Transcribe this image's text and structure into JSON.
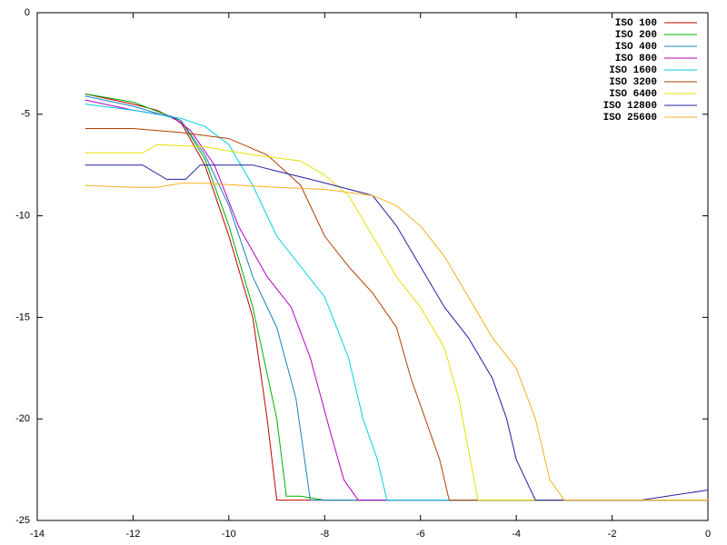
{
  "chart_data": {
    "type": "line",
    "xlim": [
      -14,
      0
    ],
    "ylim": [
      -25,
      0
    ],
    "xticks": [
      -14,
      -12,
      -10,
      -8,
      -6,
      -4,
      -2,
      0
    ],
    "yticks": [
      0,
      -5,
      -10,
      -15,
      -20,
      -25
    ],
    "grid": false,
    "legend": "top-right",
    "series": [
      {
        "name": "ISO 100",
        "color": "#c00000",
        "x": [
          -13,
          -12,
          -11.5,
          -11,
          -10.5,
          -10,
          -9.5,
          -9.2,
          -9.0,
          0
        ],
        "values": [
          -4.0,
          -4.5,
          -4.8,
          -5.4,
          -7.5,
          -11,
          -15,
          -20,
          -24,
          -24
        ]
      },
      {
        "name": "ISO 200",
        "color": "#00b000",
        "x": [
          -13,
          -12,
          -11,
          -10.5,
          -10,
          -9.5,
          -9.0,
          -8.8,
          -8.5,
          -8,
          0
        ],
        "values": [
          -4.0,
          -4.4,
          -5.3,
          -7.2,
          -10.5,
          -14.5,
          -20,
          -23.8,
          -23.8,
          -24,
          -24
        ]
      },
      {
        "name": "ISO 400",
        "color": "#1a80c0",
        "x": [
          -13,
          -12,
          -11,
          -10.5,
          -10,
          -9.5,
          -9,
          -8.6,
          -8.3,
          0
        ],
        "values": [
          -4.1,
          -4.6,
          -5.3,
          -7,
          -9.5,
          -13,
          -15.5,
          -19,
          -24,
          -24
        ]
      },
      {
        "name": "ISO 800",
        "color": "#b000c0",
        "x": [
          -13,
          -12,
          -11.2,
          -10.8,
          -10.3,
          -9.8,
          -9.2,
          -8.7,
          -8.3,
          -7.9,
          -7.6,
          -7.3,
          0
        ],
        "values": [
          -4.3,
          -4.8,
          -5.1,
          -5.8,
          -7.5,
          -10.5,
          -13,
          -14.5,
          -17,
          -20.5,
          -23,
          -24,
          -24
        ]
      },
      {
        "name": "ISO 1600",
        "color": "#00d0e0",
        "x": [
          -13,
          -12,
          -11,
          -10.5,
          -10,
          -9.5,
          -9,
          -8.5,
          -8,
          -7.5,
          -7.2,
          -6.9,
          -6.7,
          0
        ],
        "values": [
          -4.5,
          -4.8,
          -5.2,
          -5.6,
          -6.5,
          -8.5,
          -11,
          -12.5,
          -14,
          -17,
          -20,
          -22,
          -24,
          -24
        ]
      },
      {
        "name": "ISO 3200",
        "color": "#b04000",
        "x": [
          -13,
          -12,
          -11,
          -10,
          -9.2,
          -8.5,
          -8,
          -7.5,
          -7,
          -6.5,
          -6.2,
          -5.9,
          -5.6,
          -5.4,
          0
        ],
        "values": [
          -5.7,
          -5.7,
          -5.9,
          -6.2,
          -7,
          -8.5,
          -11,
          -12.5,
          -13.8,
          -15.5,
          -18,
          -20,
          -22,
          -24,
          -24
        ]
      },
      {
        "name": "ISO 6400",
        "color": "#e8e000",
        "x": [
          -13,
          -11.8,
          -11.5,
          -10.5,
          -9.5,
          -8.5,
          -8,
          -7.5,
          -7,
          -6.5,
          -6,
          -5.5,
          -5.2,
          -5,
          -4.8,
          0
        ],
        "values": [
          -6.9,
          -6.9,
          -6.5,
          -6.6,
          -7,
          -7.3,
          -8,
          -9,
          -11,
          -13,
          -14.5,
          -16.5,
          -19,
          -21.5,
          -24,
          -24
        ]
      },
      {
        "name": "ISO 12800",
        "color": "#2020a0",
        "x": [
          -13,
          -11.8,
          -11.3,
          -10.9,
          -10.6,
          -9.5,
          -9,
          -8.3,
          -7.8,
          -7,
          -6.5,
          -6,
          -5.5,
          -5,
          -4.5,
          -4.2,
          -4,
          -3.6,
          -1.4,
          0
        ],
        "values": [
          -7.5,
          -7.5,
          -8.2,
          -8.2,
          -7.5,
          -7.5,
          -7.8,
          -8.2,
          -8.5,
          -9,
          -10.5,
          -12.5,
          -14.5,
          -16,
          -18,
          -20,
          -22,
          -24,
          -24,
          -23.5
        ]
      },
      {
        "name": "ISO 25600",
        "color": "#f8b020",
        "x": [
          -13,
          -12,
          -11.5,
          -11,
          -10.5,
          -9,
          -8,
          -7,
          -6.5,
          -6,
          -5.5,
          -5,
          -4.5,
          -4,
          -3.6,
          -3.3,
          -3,
          0
        ],
        "values": [
          -8.5,
          -8.6,
          -8.6,
          -8.4,
          -8.4,
          -8.6,
          -8.7,
          -9,
          -9.5,
          -10.5,
          -12,
          -14,
          -16,
          -17.5,
          -20,
          -23,
          -24,
          -24
        ]
      }
    ]
  }
}
